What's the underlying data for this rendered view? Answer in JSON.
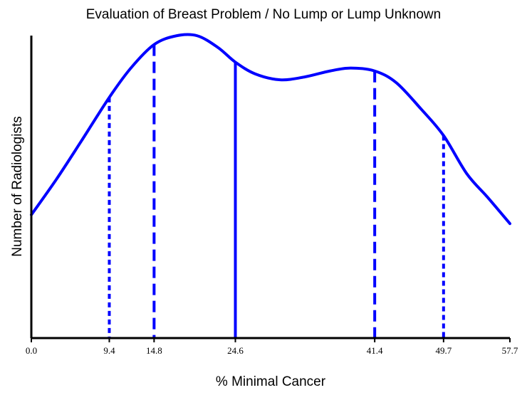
{
  "chart_data": {
    "type": "line",
    "title": "Evaluation of Breast Problem / No Lump or Lump Unknown",
    "xlabel": "% Minimal Cancer",
    "ylabel": "Number of Radiologists",
    "xlim": [
      0.0,
      57.7
    ],
    "y_tick_labels_shown": false,
    "grid": false,
    "legend": "none",
    "x_tick_labels": [
      "0.0",
      "9.4",
      "14.8",
      "24.6",
      "41.4",
      "49.7",
      "57.7"
    ],
    "series": [
      {
        "color": "#0000ff",
        "x": [
          0.0,
          3.0,
          6.0,
          9.4,
          12.0,
          14.8,
          17.5,
          20.0,
          22.5,
          24.6,
          27.0,
          30.0,
          33.0,
          36.0,
          38.5,
          41.4,
          44.0,
          47.0,
          49.7,
          52.5,
          55.0,
          57.7
        ],
        "y": [
          0.42,
          0.54,
          0.67,
          0.82,
          0.92,
          1.0,
          1.03,
          1.03,
          0.99,
          0.94,
          0.9,
          0.88,
          0.89,
          0.91,
          0.92,
          0.91,
          0.87,
          0.78,
          0.69,
          0.56,
          0.48,
          0.39
        ]
      }
    ],
    "reference_lines": [
      {
        "x": 9.4,
        "style": "dotted",
        "color": "#0000ff"
      },
      {
        "x": 14.8,
        "style": "dashed",
        "color": "#0000ff"
      },
      {
        "x": 24.6,
        "style": "solid",
        "color": "#0000ff"
      },
      {
        "x": 41.4,
        "style": "dashed",
        "color": "#0000ff"
      },
      {
        "x": 49.7,
        "style": "dotted",
        "color": "#0000ff"
      }
    ],
    "colors": {
      "curve": "#0000ff",
      "axis": "#000000",
      "background": "#ffffff"
    }
  }
}
